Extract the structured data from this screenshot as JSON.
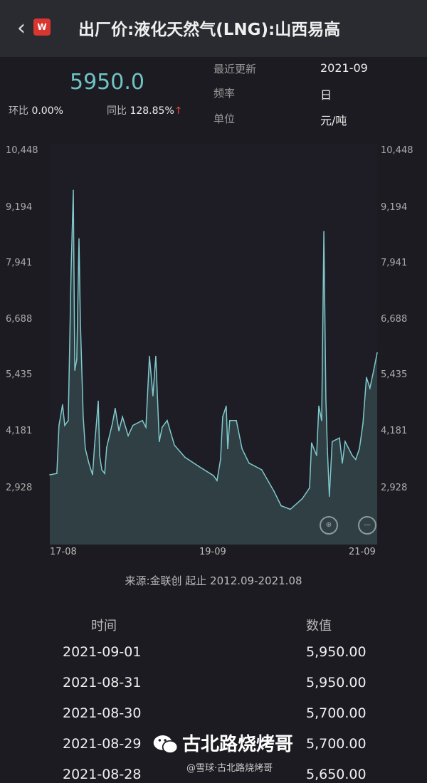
{
  "header": {
    "title": "出厂价:液化天然气(LNG):山西易高",
    "back_icon": "chevron-left-icon",
    "logo_text": "W"
  },
  "summary": {
    "price": "5950.0",
    "mom_label": "环比",
    "mom_value": "0.00%",
    "yoy_label": "同比",
    "yoy_value": "128.85%",
    "yoy_arrow": "↑"
  },
  "meta": [
    {
      "label": "最近更新",
      "value": "2021-09"
    },
    {
      "label": "频率",
      "value": "日"
    },
    {
      "label": "单位",
      "value": "元/吨"
    }
  ],
  "chart_data": {
    "type": "area",
    "y_ticks": [
      "10,448",
      "9,194",
      "7,941",
      "6,688",
      "5,435",
      "4,181",
      "2,928"
    ],
    "ylim": [
      1675,
      10448
    ],
    "x_ticks": [
      "17-08",
      "19-09",
      "21-09"
    ],
    "xlim": [
      "2017-08-01",
      "2021-09-01"
    ],
    "line_color": "#7fc9cc",
    "fill_color": "#2f3f44",
    "grid": false,
    "points": [
      [
        "2017-08-01",
        3230
      ],
      [
        "2017-09-02",
        3260
      ],
      [
        "2017-09-12",
        4330
      ],
      [
        "2017-09-28",
        4790
      ],
      [
        "2017-10-08",
        4330
      ],
      [
        "2017-10-24",
        4440
      ],
      [
        "2017-11-06",
        7780
      ],
      [
        "2017-11-16",
        9570
      ],
      [
        "2017-11-23",
        5560
      ],
      [
        "2017-12-02",
        5800
      ],
      [
        "2017-12-12",
        8490
      ],
      [
        "2017-12-18",
        6670
      ],
      [
        "2017-12-31",
        4520
      ],
      [
        "2018-01-10",
        3810
      ],
      [
        "2018-01-26",
        3490
      ],
      [
        "2018-02-12",
        3230
      ],
      [
        "2018-02-21",
        3890
      ],
      [
        "2018-03-10",
        4870
      ],
      [
        "2018-03-16",
        3660
      ],
      [
        "2018-03-26",
        3340
      ],
      [
        "2018-04-08",
        3260
      ],
      [
        "2018-04-17",
        3840
      ],
      [
        "2018-05-13",
        4370
      ],
      [
        "2018-05-26",
        4710
      ],
      [
        "2018-06-12",
        4210
      ],
      [
        "2018-06-28",
        4520
      ],
      [
        "2018-07-24",
        4100
      ],
      [
        "2018-08-15",
        4330
      ],
      [
        "2018-09-27",
        4440
      ],
      [
        "2018-10-13",
        4290
      ],
      [
        "2018-10-29",
        5870
      ],
      [
        "2018-11-14",
        4990
      ],
      [
        "2018-11-27",
        5870
      ],
      [
        "2018-12-13",
        3970
      ],
      [
        "2018-12-26",
        4290
      ],
      [
        "2019-01-18",
        4440
      ],
      [
        "2019-02-20",
        3890
      ],
      [
        "2019-04-09",
        3620
      ],
      [
        "2019-06-13",
        3410
      ],
      [
        "2019-08-17",
        3210
      ],
      [
        "2019-09-02",
        3100
      ],
      [
        "2019-09-18",
        3570
      ],
      [
        "2019-09-28",
        4520
      ],
      [
        "2019-10-14",
        4760
      ],
      [
        "2019-10-21",
        3810
      ],
      [
        "2019-10-30",
        4440
      ],
      [
        "2019-11-29",
        4440
      ],
      [
        "2019-12-25",
        3810
      ],
      [
        "2020-01-26",
        3490
      ],
      [
        "2020-03-24",
        3340
      ],
      [
        "2020-05-19",
        2860
      ],
      [
        "2020-06-20",
        2540
      ],
      [
        "2020-08-01",
        2460
      ],
      [
        "2020-09-25",
        2700
      ],
      [
        "2020-10-28",
        2940
      ],
      [
        "2020-11-06",
        3940
      ],
      [
        "2020-11-29",
        3660
      ],
      [
        "2020-12-09",
        4760
      ],
      [
        "2020-12-22",
        4440
      ],
      [
        "2021-01-01",
        8650
      ],
      [
        "2021-01-10",
        4920
      ],
      [
        "2021-01-17",
        3810
      ],
      [
        "2021-01-26",
        2750
      ],
      [
        "2021-02-08",
        3970
      ],
      [
        "2021-03-13",
        4050
      ],
      [
        "2021-03-26",
        3490
      ],
      [
        "2021-04-08",
        3970
      ],
      [
        "2021-05-10",
        3660
      ],
      [
        "2021-05-26",
        3570
      ],
      [
        "2021-06-12",
        3810
      ],
      [
        "2021-06-28",
        4370
      ],
      [
        "2021-07-14",
        5400
      ],
      [
        "2021-07-30",
        5160
      ],
      [
        "2021-08-16",
        5560
      ],
      [
        "2021-09-01",
        5950
      ]
    ]
  },
  "source": "来源:金联创 起止 2012.09-2021.08",
  "table": {
    "headers": [
      "时间",
      "数值"
    ],
    "rows": [
      [
        "2021-09-01",
        "5,950.00"
      ],
      [
        "2021-08-31",
        "5,950.00"
      ],
      [
        "2021-08-30",
        "5,700.00"
      ],
      [
        "2021-08-29",
        "5,700.00"
      ],
      [
        "2021-08-28",
        "5,650.00"
      ]
    ]
  },
  "watermark": {
    "icon": "wechat-icon",
    "text": "古北路烧烤哥",
    "sub": "@雪球·古北路烧烤哥"
  }
}
